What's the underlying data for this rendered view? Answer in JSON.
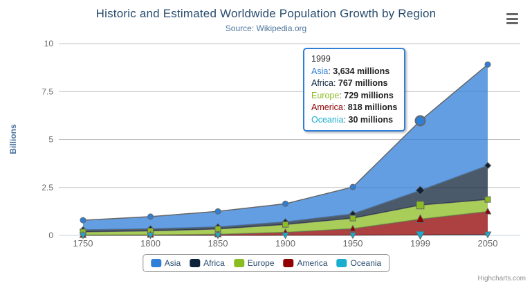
{
  "chart": {
    "title": "Historic and Estimated Worldwide Population Growth by Region",
    "subtitle": "Source: Wikipedia.org",
    "credits": "Highcharts.com"
  },
  "palette": {
    "title": "#274b6d",
    "subtitle": "#4d759e",
    "axis_title": "#4d759e",
    "axis_label": "#666666",
    "gridline": "#c0c0c0",
    "axis_line": "#c0d0e0",
    "series_outline": "#666666",
    "legend_border": "#909090",
    "legend_text": "#274b6d",
    "tooltip_border": "#2f7ed8",
    "menu_icon": "#666666",
    "credits_text": "#909090"
  },
  "chart_data": {
    "type": "area",
    "stacking": "normal",
    "title": "Historic and Estimated Worldwide Population Growth by Region",
    "subtitle": "Source: Wikipedia.org",
    "categories": [
      "1750",
      "1800",
      "1850",
      "1900",
      "1950",
      "1999",
      "2050"
    ],
    "series": [
      {
        "name": "Asia",
        "color": "#2f7ed8",
        "marker": "circle",
        "values_millions": [
          502,
          635,
          809,
          947,
          1402,
          3634,
          5268
        ]
      },
      {
        "name": "Africa",
        "color": "#0d233a",
        "marker": "diamond",
        "values_millions": [
          106,
          107,
          111,
          133,
          221,
          767,
          1766
        ]
      },
      {
        "name": "Europe",
        "color": "#8bbc21",
        "marker": "square",
        "values_millions": [
          163,
          203,
          276,
          408,
          547,
          729,
          628
        ]
      },
      {
        "name": "America",
        "color": "#910000",
        "marker": "triangle",
        "values_millions": [
          18,
          31,
          54,
          156,
          339,
          818,
          1201
        ]
      },
      {
        "name": "Oceania",
        "color": "#1aadce",
        "marker": "triangle-down",
        "values_millions": [
          2,
          2,
          2,
          6,
          13,
          30,
          46
        ]
      }
    ],
    "stack_order_bottom_to_top": [
      "Oceania",
      "America",
      "Europe",
      "Africa",
      "Asia"
    ],
    "xlabel": "",
    "ylabel": "Billions",
    "yticks": [
      0,
      2.5,
      5,
      7.5,
      10
    ],
    "ylim": [
      0,
      10
    ],
    "y_unit": "billions (series values given in millions)",
    "grid": "horizontal",
    "legend_position": "bottom",
    "area_fill_opacity": 0.75
  },
  "tooltip": {
    "header": "1999",
    "hover_category_index": 5,
    "rows": [
      {
        "name": "Asia",
        "value": "3,634 millions"
      },
      {
        "name": "Africa",
        "value": "767 millions"
      },
      {
        "name": "Europe",
        "value": "729 millions"
      },
      {
        "name": "America",
        "value": "818 millions"
      },
      {
        "name": "Oceania",
        "value": "30 millions"
      }
    ]
  }
}
